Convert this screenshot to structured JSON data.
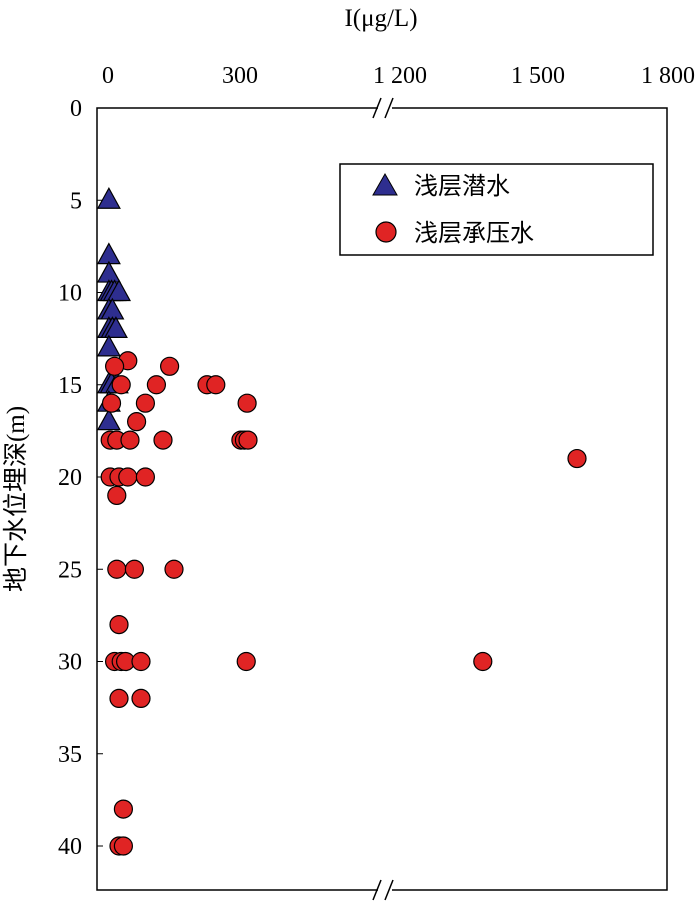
{
  "chart_data": {
    "type": "scatter",
    "title": "",
    "xlabel": "I(μg/L)",
    "ylabel": "地下水位埋深(m)",
    "x_axis_position": "top",
    "x_axis_break": "between 300 and 1 200",
    "x_tick_labels": [
      "0",
      "300",
      "1 200",
      "1 500",
      "1 800"
    ],
    "x_tick_values": [
      0,
      300,
      1200,
      1500,
      1800
    ],
    "y_tick_labels": [
      "0",
      "5",
      "10",
      "15",
      "20",
      "25",
      "30",
      "35",
      "40"
    ],
    "y_tick_values": [
      0,
      5,
      10,
      15,
      20,
      25,
      30,
      35,
      40
    ],
    "ylim": [
      0,
      42
    ],
    "y_inverted": true,
    "grid": false,
    "legend_position": "top-right",
    "colors": {
      "series_1": "#2E2E8F",
      "series_2": "#E02424"
    },
    "series": [
      {
        "name": "浅层潜水",
        "marker": "triangle",
        "color": "#2E2E8F",
        "points": [
          [
            2,
            5
          ],
          [
            2,
            8
          ],
          [
            2,
            9
          ],
          [
            2,
            10
          ],
          [
            8,
            10
          ],
          [
            15,
            10
          ],
          [
            25,
            10
          ],
          [
            2,
            11
          ],
          [
            10,
            11
          ],
          [
            2,
            12
          ],
          [
            10,
            12
          ],
          [
            18,
            12
          ],
          [
            2,
            13
          ],
          [
            2,
            15
          ],
          [
            8,
            15
          ],
          [
            20,
            15
          ],
          [
            2,
            16
          ],
          [
            2,
            17
          ]
        ]
      },
      {
        "name": "浅层承压水",
        "marker": "circle",
        "color": "#E02424",
        "points": [
          [
            45,
            13.7
          ],
          [
            15,
            14
          ],
          [
            140,
            14
          ],
          [
            30,
            15
          ],
          [
            110,
            15
          ],
          [
            225,
            15
          ],
          [
            245,
            15
          ],
          [
            8,
            16
          ],
          [
            85,
            16
          ],
          [
            340,
            16
          ],
          [
            65,
            17
          ],
          [
            5,
            18
          ],
          [
            20,
            18
          ],
          [
            50,
            18
          ],
          [
            125,
            18
          ],
          [
            305,
            18
          ],
          [
            325,
            18
          ],
          [
            345,
            18
          ],
          [
            1590,
            19
          ],
          [
            5,
            20
          ],
          [
            25,
            20
          ],
          [
            45,
            20
          ],
          [
            85,
            20
          ],
          [
            20,
            21
          ],
          [
            20,
            25
          ],
          [
            60,
            25
          ],
          [
            150,
            25
          ],
          [
            25,
            28
          ],
          [
            15,
            30
          ],
          [
            30,
            30
          ],
          [
            40,
            30
          ],
          [
            75,
            30
          ],
          [
            335,
            30
          ],
          [
            1380,
            30
          ],
          [
            25,
            32
          ],
          [
            75,
            32
          ],
          [
            35,
            38
          ],
          [
            25,
            40
          ],
          [
            35,
            40
          ]
        ]
      }
    ]
  }
}
